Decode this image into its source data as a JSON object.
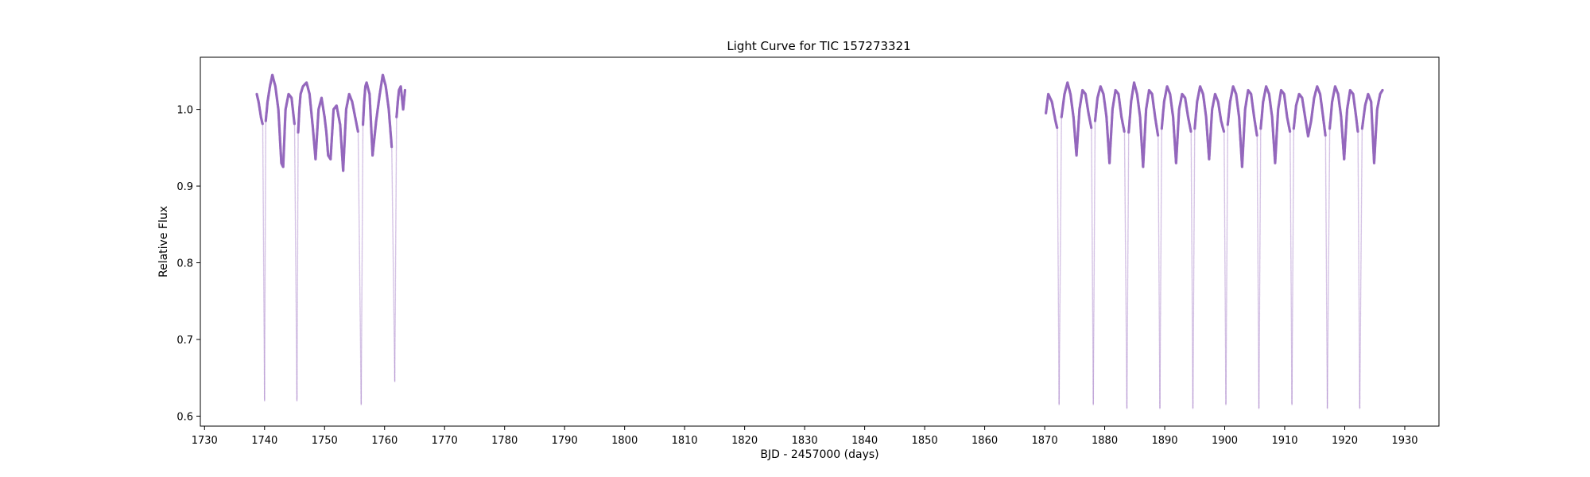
{
  "chart_data": {
    "type": "scatter",
    "title": "Light Curve for TIC 157273321",
    "xlabel": "BJD - 2457000 (days)",
    "ylabel": "Relative Flux",
    "xlim": [
      1729.3,
      1935.7
    ],
    "ylim": [
      0.587,
      1.068
    ],
    "xticks": [
      1730,
      1740,
      1750,
      1760,
      1770,
      1780,
      1790,
      1800,
      1810,
      1820,
      1830,
      1840,
      1850,
      1860,
      1870,
      1880,
      1890,
      1900,
      1910,
      1920,
      1930
    ],
    "xtick_labels": [
      "1730",
      "1740",
      "1750",
      "1760",
      "1770",
      "1780",
      "1790",
      "1800",
      "1810",
      "1820",
      "1830",
      "1840",
      "1850",
      "1860",
      "1870",
      "1880",
      "1890",
      "1900",
      "1910",
      "1920",
      "1930"
    ],
    "yticks": [
      0.6,
      0.7,
      0.8,
      0.9,
      1.0
    ],
    "ytick_labels": [
      "0.6",
      "0.7",
      "0.8",
      "0.9",
      "1.0"
    ],
    "grid": false,
    "color": "#9467bd",
    "series": [
      {
        "name": "",
        "segments": [
          {
            "x": [
              1738.7,
              1739.0,
              1739.4,
              1739.7,
              1740.0,
              1740.2,
              1740.5,
              1740.9,
              1741.3,
              1741.8,
              1742.3,
              1742.8,
              1743.1,
              1743.5,
              1744.0,
              1744.5,
              1745.0,
              1745.4,
              1745.6,
              1745.8,
              1746.0,
              1746.4,
              1747.0,
              1747.5,
              1748.0,
              1748.5,
              1749.0,
              1749.5,
              1750.0,
              1750.3,
              1750.6,
              1751.0,
              1751.5,
              1752.0,
              1752.6,
              1753.1,
              1753.6,
              1754.1,
              1754.6,
              1755.1,
              1755.6,
              1756.1,
              1756.4,
              1756.6,
              1756.8,
              1757.0,
              1757.5,
              1758.0,
              1758.6,
              1759.2,
              1759.7,
              1760.2,
              1760.7,
              1761.2,
              1761.7,
              1762.0,
              1762.2,
              1762.4,
              1762.7,
              1763.1,
              1763.4
            ],
            "y": [
              1.02,
              1.01,
              0.99,
              0.98,
              0.62,
              0.985,
              1.01,
              1.03,
              1.045,
              1.03,
              1.0,
              0.93,
              0.925,
              1.0,
              1.02,
              1.015,
              0.98,
              0.62,
              0.97,
              1.0,
              1.02,
              1.03,
              1.035,
              1.02,
              0.98,
              0.935,
              1.0,
              1.015,
              0.99,
              0.97,
              0.94,
              0.935,
              1.0,
              1.005,
              0.98,
              0.92,
              1.0,
              1.02,
              1.01,
              0.99,
              0.97,
              0.615,
              0.98,
              1.01,
              1.03,
              1.035,
              1.02,
              0.94,
              0.985,
              1.02,
              1.045,
              1.03,
              1.0,
              0.95,
              0.645,
              0.99,
              1.01,
              1.025,
              1.03,
              1.0,
              1.025
            ]
          },
          {
            "x": [
              1870.2,
              1870.6,
              1871.2,
              1871.8,
              1872.1,
              1872.4,
              1872.8,
              1873.3,
              1873.8,
              1874.3,
              1874.8,
              1875.3,
              1875.8,
              1876.3,
              1876.8,
              1877.3,
              1877.8,
              1878.1,
              1878.4,
              1878.8,
              1879.3,
              1879.8,
              1880.3,
              1880.8,
              1881.3,
              1881.8,
              1882.3,
              1882.8,
              1883.3,
              1883.7,
              1884.0,
              1884.4,
              1884.9,
              1885.4,
              1885.9,
              1886.4,
              1886.9,
              1887.4,
              1887.9,
              1888.4,
              1888.9,
              1889.2,
              1889.5,
              1889.9,
              1890.4,
              1890.9,
              1891.4,
              1891.9,
              1892.4,
              1892.9,
              1893.4,
              1893.9,
              1894.4,
              1894.7,
              1895.0,
              1895.4,
              1895.9,
              1896.4,
              1896.9,
              1897.4,
              1897.9,
              1898.4,
              1898.9,
              1899.4,
              1899.9,
              1900.2,
              1900.5,
              1900.9,
              1901.4,
              1901.9,
              1902.4,
              1902.9,
              1903.4,
              1903.9,
              1904.4,
              1904.9,
              1905.4,
              1905.7,
              1906.0,
              1906.4,
              1906.9,
              1907.4,
              1907.9,
              1908.4,
              1908.9,
              1909.4,
              1909.9,
              1910.4,
              1910.9,
              1911.2,
              1911.5,
              1911.9,
              1912.4,
              1912.9,
              1913.4,
              1913.9,
              1914.4,
              1914.9,
              1915.4,
              1915.9,
              1916.4,
              1916.8,
              1917.1,
              1917.5,
              1917.9,
              1918.4,
              1918.9,
              1919.4,
              1919.9,
              1920.4,
              1920.9,
              1921.4,
              1921.9,
              1922.2,
              1922.5,
              1922.9,
              1923.4,
              1923.9,
              1924.4,
              1924.9,
              1925.4,
              1925.9,
              1926.3
            ],
            "y": [
              0.995,
              1.02,
              1.01,
              0.985,
              0.975,
              0.615,
              0.99,
              1.02,
              1.035,
              1.02,
              0.99,
              0.94,
              1.0,
              1.025,
              1.02,
              0.995,
              0.975,
              0.615,
              0.985,
              1.015,
              1.03,
              1.02,
              0.99,
              0.93,
              1.0,
              1.025,
              1.02,
              0.99,
              0.97,
              0.61,
              0.97,
              1.01,
              1.035,
              1.02,
              0.99,
              0.925,
              1.0,
              1.025,
              1.02,
              0.99,
              0.965,
              0.61,
              0.975,
              1.01,
              1.03,
              1.02,
              0.99,
              0.93,
              1.0,
              1.02,
              1.015,
              0.99,
              0.97,
              0.61,
              0.975,
              1.01,
              1.03,
              1.02,
              0.99,
              0.935,
              1.0,
              1.02,
              1.01,
              0.985,
              0.97,
              0.615,
              0.98,
              1.01,
              1.03,
              1.02,
              0.99,
              0.925,
              1.0,
              1.025,
              1.02,
              0.99,
              0.965,
              0.61,
              0.975,
              1.01,
              1.03,
              1.02,
              0.99,
              0.93,
              1.0,
              1.025,
              1.02,
              0.99,
              0.97,
              0.615,
              0.975,
              1.005,
              1.02,
              1.015,
              0.99,
              0.965,
              0.985,
              1.015,
              1.03,
              1.02,
              0.99,
              0.965,
              0.61,
              0.975,
              1.01,
              1.03,
              1.02,
              0.99,
              0.935,
              1.0,
              1.025,
              1.02,
              0.99,
              0.97,
              0.61,
              0.975,
              1.005,
              1.02,
              1.01,
              0.93,
              1.0,
              1.02,
              1.025
            ]
          }
        ]
      }
    ]
  }
}
